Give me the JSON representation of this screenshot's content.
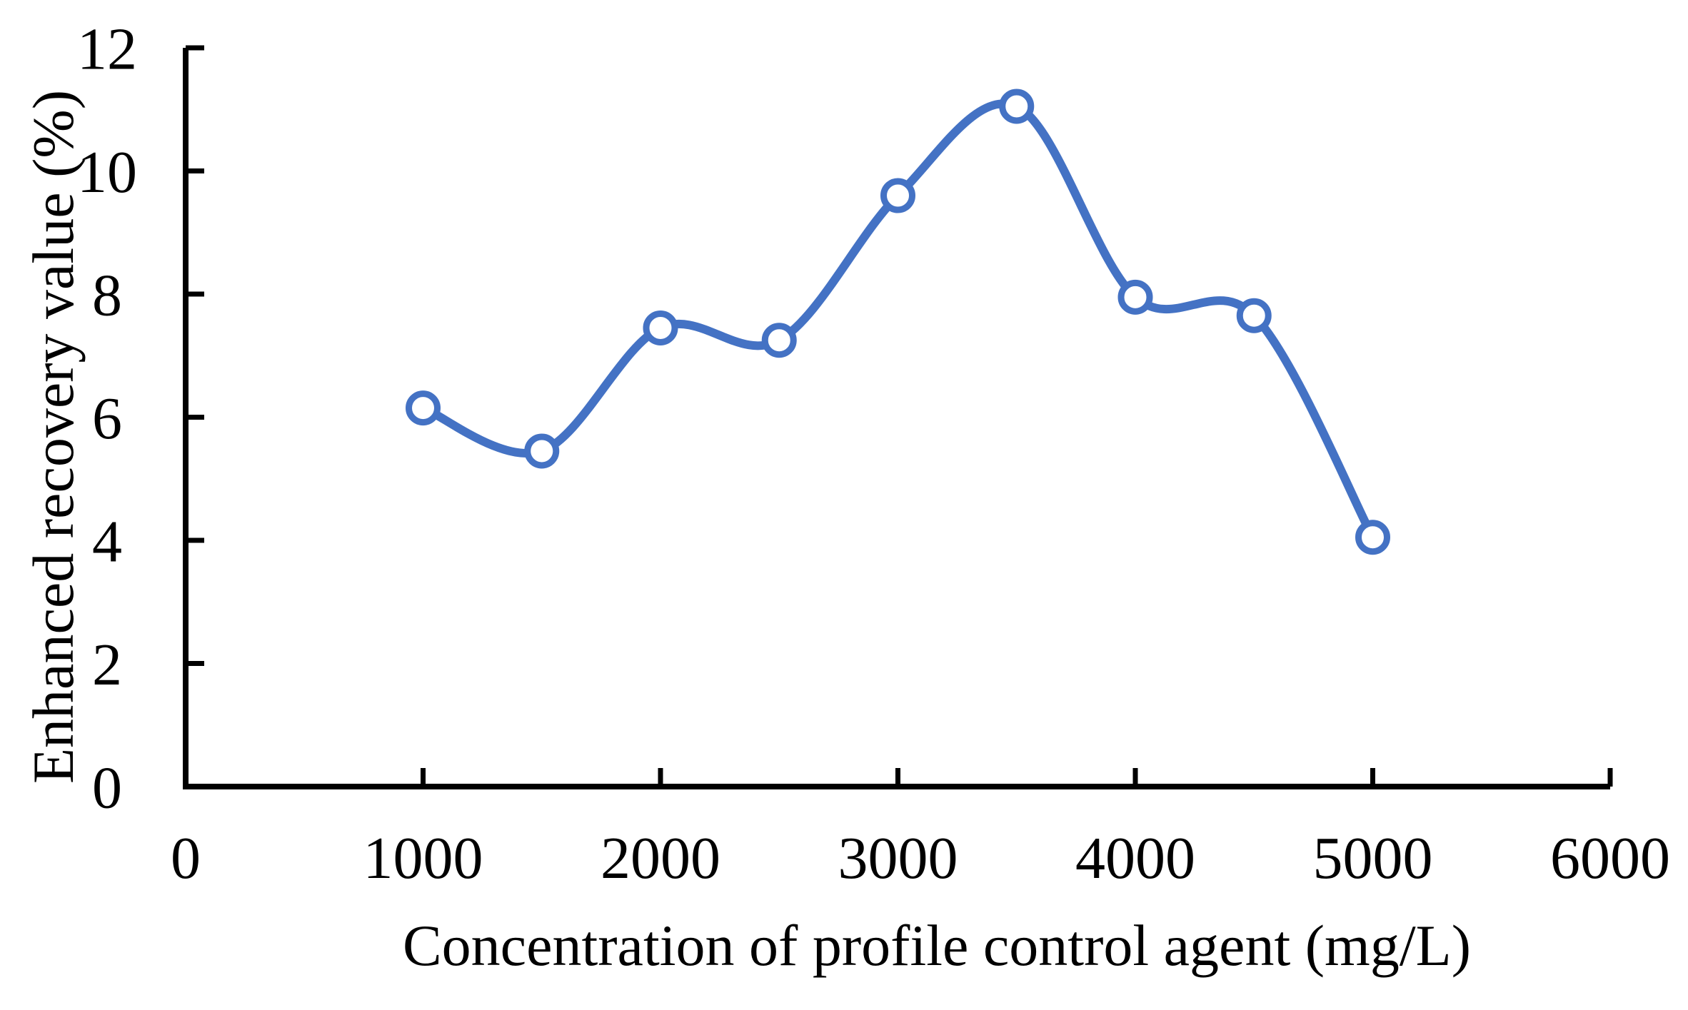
{
  "figure": {
    "background": "#FFFFFF"
  },
  "chart_data": {
    "type": "line",
    "title": "",
    "xlabel": "Concentration of profile control agent (mg/L)",
    "ylabel": "Enhanced recovery value (%)",
    "x": [
      1000,
      1500,
      2000,
      2500,
      3000,
      3500,
      4000,
      4500,
      5000
    ],
    "y": [
      6.15,
      5.45,
      7.45,
      7.25,
      9.6,
      11.05,
      7.95,
      7.65,
      4.05
    ],
    "xlim": [
      0,
      6000
    ],
    "ylim": [
      0,
      12
    ],
    "x_ticks": [
      0,
      1000,
      2000,
      3000,
      4000,
      5000,
      6000
    ],
    "y_ticks": [
      0,
      2,
      4,
      6,
      8,
      10,
      12
    ],
    "grid": false,
    "legend": "none",
    "smooth": true,
    "line_color": "#4472C4",
    "marker_fill": "#FFFFFF",
    "marker_stroke": "#4472C4",
    "axis_color": "#000000",
    "text_color": "#000000"
  }
}
